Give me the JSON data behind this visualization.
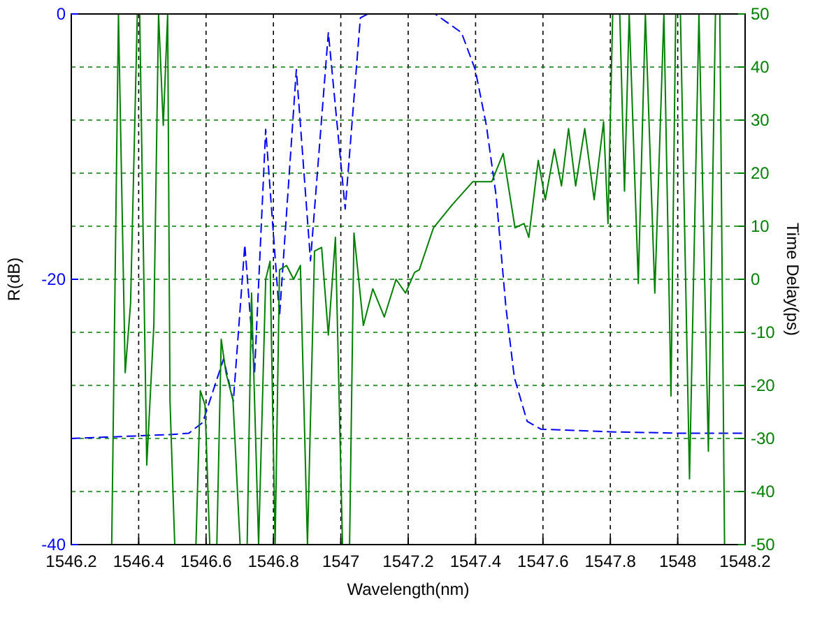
{
  "chart_data": {
    "type": "line",
    "xlabel": "Wavelength(nm)",
    "ylabel": "R(dB)",
    "y2label": "Time Delay(ps)",
    "xlim": [
      1546.2,
      1548.2
    ],
    "xticks": [
      1546.2,
      1546.4,
      1546.6,
      1546.8,
      1547,
      1547.2,
      1547.4,
      1547.6,
      1547.8,
      1548,
      1548.2
    ],
    "ylim": [
      -40,
      0
    ],
    "yticks": [
      -40,
      -20,
      0
    ],
    "y2lim": [
      -50,
      50
    ],
    "y2ticks": [
      -50,
      -40,
      -30,
      -20,
      -10,
      0,
      10,
      20,
      30,
      40,
      50
    ],
    "grid": true,
    "series": [
      {
        "color": "#0000ff",
        "line_style": "dashed",
        "x": [
          1546.2,
          1546.3,
          1546.4,
          1546.5,
          1546.549,
          1546.59,
          1546.652,
          1546.681,
          1546.715,
          1546.744,
          1546.777,
          1546.818,
          1546.868,
          1546.91,
          1546.963,
          1547.013,
          1547.058,
          1547.08,
          1547.28,
          1547.358,
          1547.399,
          1547.432,
          1547.461,
          1547.49,
          1547.515,
          1547.553,
          1547.594,
          1547.8,
          1548.0,
          1548.2
        ],
        "values": [
          -32,
          -31.9,
          -31.8,
          -31.7,
          -31.6,
          -30.8,
          -26,
          -29.2,
          -17.4,
          -27,
          -8.7,
          -22.8,
          -4.2,
          -18.6,
          -1.4,
          -14.7,
          -0.3,
          0,
          0,
          -1.4,
          -4.2,
          -8.4,
          -13.7,
          -22.1,
          -27.4,
          -30.7,
          -31.3,
          -31.5,
          -31.6,
          -31.6
        ]
      },
      {
        "color": "#008000",
        "line_style": "solid",
        "axis": "y2",
        "x": [
          1546.32,
          1546.34,
          1546.36,
          1546.376,
          1546.396,
          1546.403,
          1546.424,
          1546.445,
          1546.459,
          1546.473,
          1546.486,
          1546.493,
          1546.507,
          1546.54,
          1546.57,
          1546.583,
          1546.597,
          1546.611,
          1546.632,
          1546.645,
          1546.659,
          1546.68,
          1546.701,
          1546.722,
          1546.735,
          1546.756,
          1546.777,
          1546.79,
          1546.805,
          1546.818,
          1546.839,
          1546.86,
          1546.88,
          1546.901,
          1546.922,
          1546.943,
          1546.963,
          1546.984,
          1547.005,
          1547.026,
          1547.039,
          1547.067,
          1547.095,
          1547.129,
          1547.164,
          1547.192,
          1547.219,
          1547.233,
          1547.275,
          1547.33,
          1547.392,
          1547.448,
          1547.482,
          1547.517,
          1547.544,
          1547.558,
          1547.586,
          1547.607,
          1547.634,
          1547.655,
          1547.676,
          1547.697,
          1547.724,
          1547.752,
          1547.78,
          1547.793,
          1547.807,
          1547.828,
          1547.842,
          1547.856,
          1547.883,
          1547.904,
          1547.932,
          1547.959,
          1547.98,
          1547.994,
          1548.008,
          1548.035,
          1548.063,
          1548.091,
          1548.112,
          1548.125,
          1548.139
        ],
        "values": [
          -50,
          50,
          -17.6,
          -4.5,
          50,
          50,
          -35,
          -8.7,
          50,
          29,
          50,
          -23,
          -50,
          null,
          -50,
          -21,
          -23.7,
          -50,
          -50,
          -11.3,
          -17.6,
          -22.8,
          -50,
          -50,
          -2.6,
          -50,
          0,
          3.4,
          -50,
          1.8,
          2.6,
          0,
          2.6,
          -50,
          5.3,
          6,
          -10.5,
          7.9,
          -50,
          -50,
          8.7,
          -8.7,
          -1.8,
          -7.1,
          0,
          -2.6,
          1.3,
          1.8,
          9.7,
          14,
          18.4,
          18.4,
          23.7,
          9.7,
          10.5,
          7.9,
          22.4,
          15,
          24.5,
          17.6,
          28.4,
          17.6,
          28.4,
          15,
          29.7,
          10.5,
          50,
          50,
          16.6,
          50,
          -0.8,
          50,
          -2.6,
          50,
          -22,
          50,
          50,
          -37.6,
          50,
          -32.4,
          50,
          50,
          -50
        ]
      }
    ]
  }
}
